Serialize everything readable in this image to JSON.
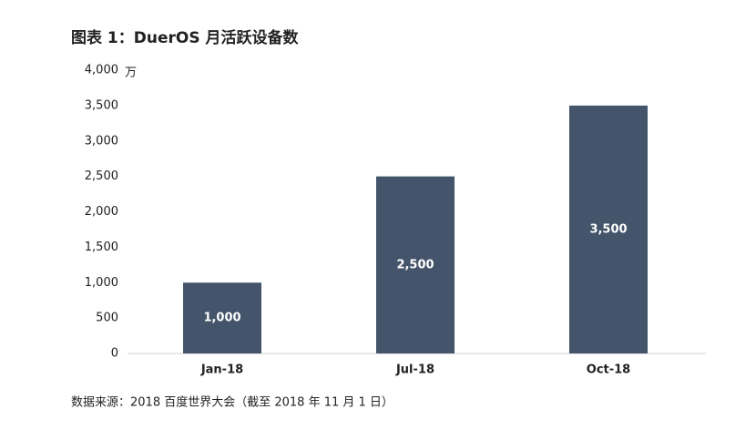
{
  "chart_data": {
    "type": "bar",
    "title": "图表 1：DuerOS 月活跃设备数",
    "y_label": "万",
    "categories": [
      "Jan-18",
      "Jul-18",
      "Oct-18"
    ],
    "values": [
      1000,
      2500,
      3500
    ],
    "value_labels": [
      "1,000",
      "2,500",
      "3,500"
    ],
    "color": "#44546a",
    "ylim": [
      0,
      4000
    ],
    "yticks": [
      0,
      500,
      {
        "value": 1000,
        "label": "1,000"
      },
      {
        "value": 1500,
        "label": "1,500"
      },
      {
        "value": 2000,
        "label": "2,000"
      },
      {
        "value": 2500,
        "label": "2,500"
      },
      {
        "value": 3000,
        "label": "3,000"
      },
      {
        "value": 3500,
        "label": "3,500"
      },
      {
        "value": 4000,
        "label": "4,000"
      }
    ],
    "grid": false,
    "source": "数据来源：2018 百度世界大会（截至 2018 年 11 月 1 日）"
  }
}
